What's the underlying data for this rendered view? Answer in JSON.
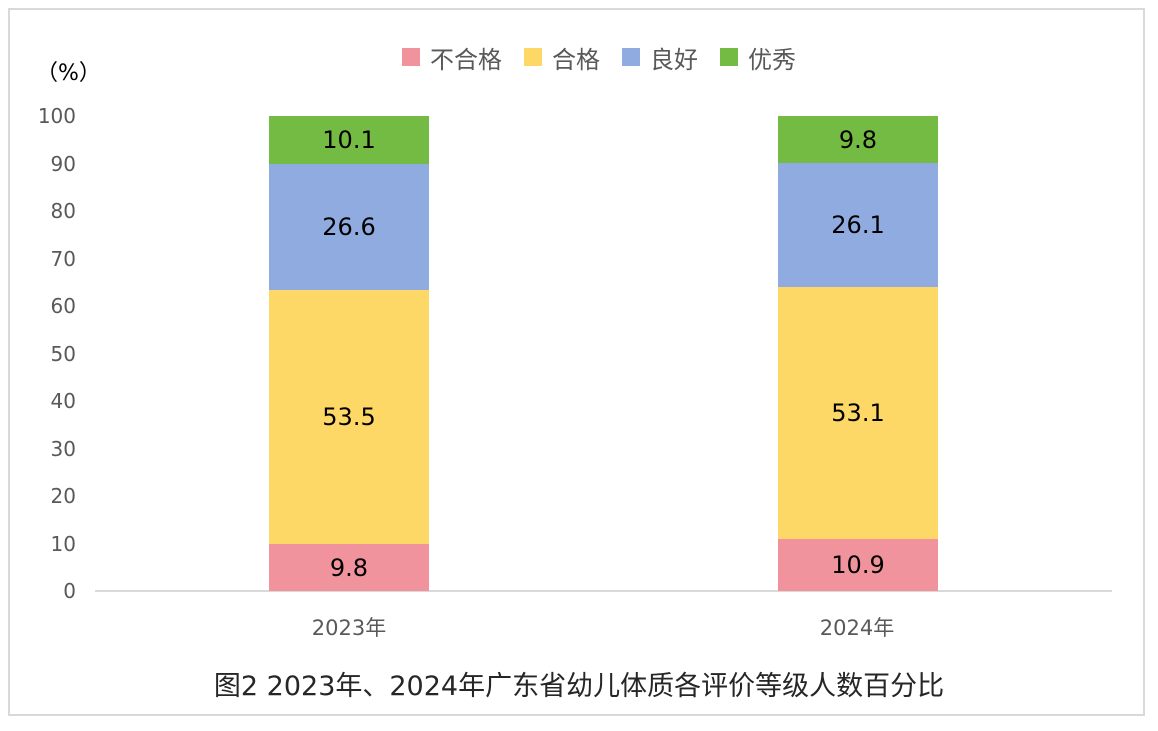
{
  "chart_data": {
    "type": "bar",
    "stacked": true,
    "title": "图2  2023年、2024年广东省幼儿体质各评价等级人数百分比",
    "xlabel": "",
    "ylabel": "（%）",
    "ylim": [
      0,
      100
    ],
    "yticks": [
      "0",
      "10",
      "20",
      "30",
      "40",
      "50",
      "60",
      "70",
      "80",
      "90",
      "100"
    ],
    "categories": [
      "2023年",
      "2024年"
    ],
    "series": [
      {
        "name": "不合格",
        "color": "#f0939c",
        "values": [
          9.8,
          10.9
        ],
        "labels": [
          "9.8",
          "10.9"
        ]
      },
      {
        "name": "合格",
        "color": "#fdd866",
        "values": [
          53.5,
          53.1
        ],
        "labels": [
          "53.5",
          "53.1"
        ]
      },
      {
        "name": "良好",
        "color": "#8fabe0",
        "values": [
          26.6,
          26.1
        ],
        "labels": [
          "26.6",
          "26.1"
        ]
      },
      {
        "name": "优秀",
        "color": "#74bb43",
        "values": [
          10.1,
          9.8
        ],
        "labels": [
          "10.1",
          "9.8"
        ]
      }
    ],
    "legend_position": "top",
    "grid": false
  }
}
